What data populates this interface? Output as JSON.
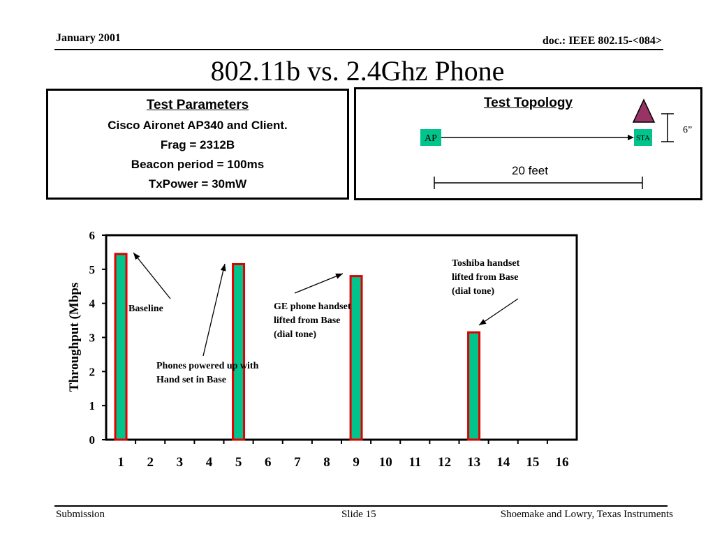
{
  "header": {
    "date": "January 2001",
    "doc": "doc.: IEEE 802.15-<084>"
  },
  "title": "802.11b vs. 2.4Ghz Phone",
  "params": {
    "heading": "Test Parameters",
    "lines": [
      "Cisco Aironet AP340 and Client.",
      "Frag = 2312B",
      "Beacon period = 100ms",
      "TxPower = 30mW"
    ]
  },
  "topology": {
    "heading": "Test Topology",
    "ap_label": "AP",
    "sta_label": "STA",
    "height_label": "6”",
    "distance_label": "20 feet",
    "node_color": "#00c48c",
    "triangle_color": "#993366"
  },
  "chart_data": {
    "type": "bar",
    "categories": [
      "1",
      "2",
      "3",
      "4",
      "5",
      "6",
      "7",
      "8",
      "9",
      "10",
      "11",
      "12",
      "13",
      "14",
      "15",
      "16"
    ],
    "values": [
      5.45,
      0,
      0,
      0,
      5.15,
      0,
      0,
      0,
      4.8,
      0,
      0,
      0,
      3.15,
      0,
      0,
      0
    ],
    "ylabel": "Throughput (Mbps",
    "xlabel": "",
    "ylim": [
      0,
      6
    ],
    "yticks": [
      0,
      1,
      2,
      3,
      4,
      5,
      6
    ],
    "bar_fill": "#00c48c",
    "bar_stroke": "#e00000",
    "annotations": [
      {
        "lines": [
          "Baseline"
        ],
        "target": "1"
      },
      {
        "lines": [
          "Phones powered up with",
          "Hand set in Base"
        ],
        "target": "5"
      },
      {
        "lines": [
          "GE phone handset",
          "lifted from Base",
          "(dial tone)"
        ],
        "target": "9"
      },
      {
        "lines": [
          "Toshiba handset",
          "lifted from Base",
          "(dial tone)"
        ],
        "target": "13"
      }
    ]
  },
  "footer": {
    "left": "Submission",
    "center": "Slide 15",
    "right": "Shoemake and Lowry, Texas Instruments"
  }
}
